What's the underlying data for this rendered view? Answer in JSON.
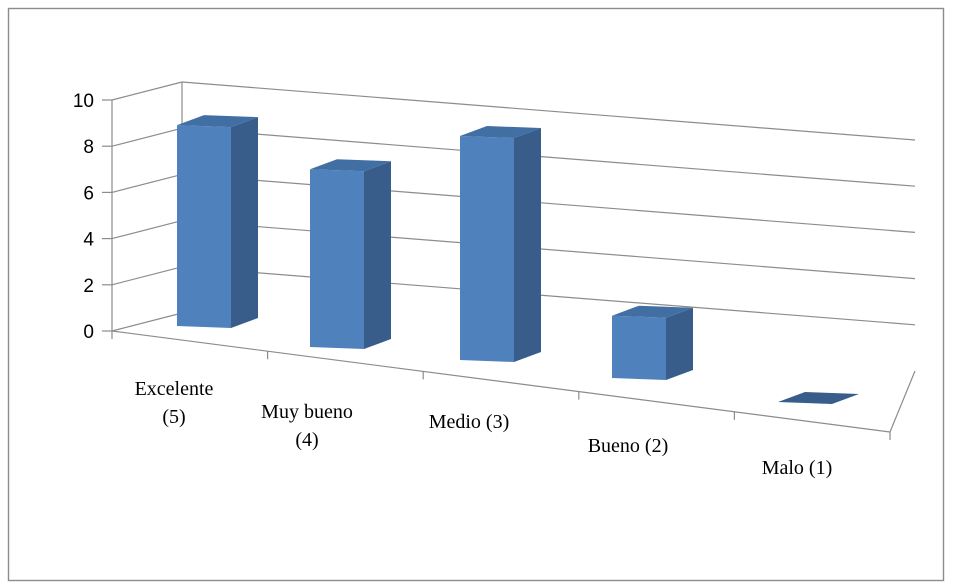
{
  "chart_data": {
    "type": "bar",
    "style": "3d-column",
    "categories": [
      "Excelente (5)",
      "Muy bueno (4)",
      "Medio (3)",
      "Bueno (2)",
      "Malo (1)"
    ],
    "category_lines": [
      [
        "Excelente",
        "(5)"
      ],
      [
        "Muy bueno",
        "(4)"
      ],
      [
        "Medio (3)"
      ],
      [
        "Bueno (2)"
      ],
      [
        "Malo (1)"
      ]
    ],
    "values": [
      9,
      8,
      10,
      3,
      0
    ],
    "yticks": [
      "0",
      "2",
      "4",
      "6",
      "8",
      "10"
    ],
    "ylim": [
      0,
      10
    ],
    "grid": true,
    "legend": "none",
    "title": "",
    "xlabel": "",
    "ylabel": ""
  },
  "colors": {
    "bar_front": "#4F81BD",
    "bar_side": "#385D8A",
    "bar_top": "#426FA3",
    "grid": "#8C8C8C",
    "frame": "#8C8C8C"
  }
}
